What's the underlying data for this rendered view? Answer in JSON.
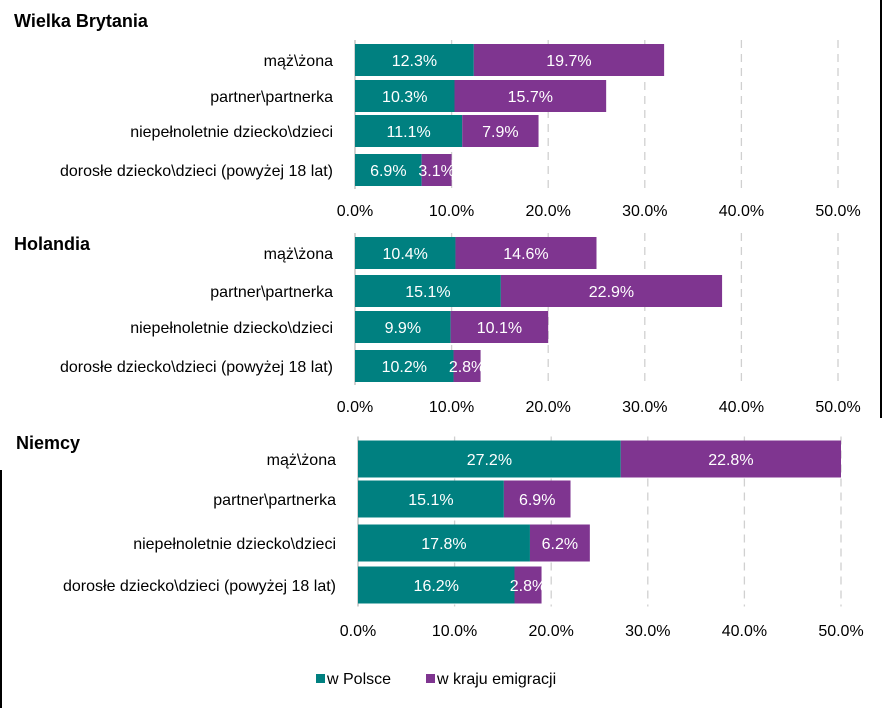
{
  "legend": [
    {
      "name": "w Polsce",
      "color": "#008080"
    },
    {
      "name": "w kraju emigracji",
      "color": "#7f3590"
    }
  ],
  "chart_data": [
    {
      "type": "bar",
      "orientation": "horizontal",
      "stacked": true,
      "title": "Wielka Brytania",
      "categories": [
        "mąż\\żona",
        "partner\\partnerka",
        "niepełnoletnie dziecko\\dzieci",
        "dorosłe dziecko\\dzieci (powyżej 18 lat)"
      ],
      "series": [
        {
          "name": "w Polsce",
          "values": [
            12.3,
            10.3,
            11.1,
            6.9
          ]
        },
        {
          "name": "w kraju emigracji",
          "values": [
            19.7,
            15.7,
            7.9,
            3.1
          ]
        }
      ],
      "data_labels": [
        [
          "12.3%",
          "10.3%",
          "11.1%",
          "6.9%"
        ],
        [
          "19.7%",
          "15.7%",
          "7.9%",
          "3.1%"
        ]
      ],
      "xlim": [
        0,
        50
      ],
      "xticks": [
        "0.0%",
        "10.0%",
        "20.0%",
        "30.0%",
        "40.0%",
        "50.0%"
      ],
      "grid": true
    },
    {
      "type": "bar",
      "orientation": "horizontal",
      "stacked": true,
      "title": "Holandia",
      "categories": [
        "mąż\\żona",
        "partner\\partnerka",
        "niepełnoletnie dziecko\\dzieci",
        "dorosłe dziecko\\dzieci (powyżej 18 lat)"
      ],
      "series": [
        {
          "name": "w Polsce",
          "values": [
            10.4,
            15.1,
            9.9,
            10.2
          ]
        },
        {
          "name": "w kraju emigracji",
          "values": [
            14.6,
            22.9,
            10.1,
            2.8
          ]
        }
      ],
      "data_labels": [
        [
          "10.4%",
          "15.1%",
          "9.9%",
          "10.2%"
        ],
        [
          "14.6%",
          "22.9%",
          "10.1%",
          "2.8%"
        ]
      ],
      "xlim": [
        0,
        50
      ],
      "xticks": [
        "0.0%",
        "10.0%",
        "20.0%",
        "30.0%",
        "40.0%",
        "50.0%"
      ],
      "grid": true
    },
    {
      "type": "bar",
      "orientation": "horizontal",
      "stacked": true,
      "title": "Niemcy",
      "categories": [
        "mąż\\żona",
        "partner\\partnerka",
        "niepełnoletnie dziecko\\dzieci",
        "dorosłe dziecko\\dzieci (powyżej 18 lat)"
      ],
      "series": [
        {
          "name": "w Polsce",
          "values": [
            27.2,
            15.1,
            17.8,
            16.2
          ]
        },
        {
          "name": "w kraju emigracji",
          "values": [
            22.8,
            6.9,
            6.2,
            2.8
          ]
        }
      ],
      "data_labels": [
        [
          "27.2%",
          "15.1%",
          "17.8%",
          "16.2%"
        ],
        [
          "22.8%",
          "6.9%",
          "6.2%",
          "2.8%"
        ]
      ],
      "xlim": [
        0,
        50
      ],
      "xticks": [
        "0.0%",
        "10.0%",
        "20.0%",
        "30.0%",
        "40.0%",
        "50.0%"
      ],
      "grid": true
    }
  ]
}
